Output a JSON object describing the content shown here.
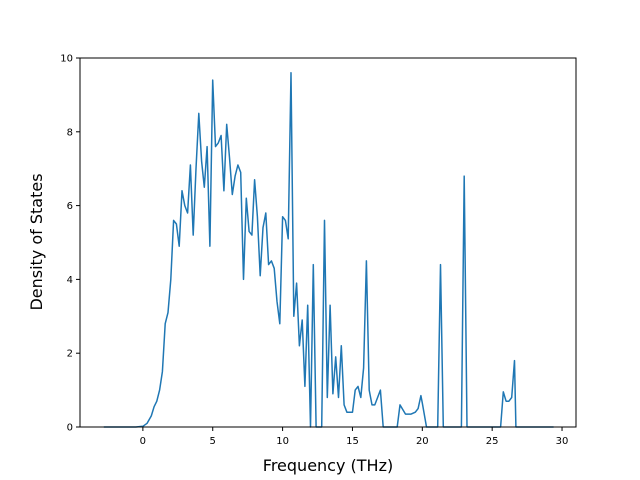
{
  "chart_data": {
    "type": "line",
    "title": "",
    "xlabel": "Frequency (THz)",
    "ylabel": "Density of States",
    "xlim": [
      -4.5,
      31
    ],
    "ylim": [
      0,
      10
    ],
    "xticks": [
      0,
      5,
      10,
      15,
      20,
      25,
      30
    ],
    "yticks": [
      0,
      2,
      4,
      6,
      8,
      10
    ],
    "grid": false,
    "legend": "none",
    "series": [
      {
        "color": "#1f77b4",
        "x": [
          -2.8,
          -1.5,
          -0.5,
          0.0,
          0.3,
          0.6,
          0.8,
          1.0,
          1.2,
          1.4,
          1.6,
          1.8,
          2.0,
          2.2,
          2.4,
          2.6,
          2.8,
          3.0,
          3.2,
          3.4,
          3.6,
          3.8,
          4.0,
          4.2,
          4.4,
          4.6,
          4.8,
          5.0,
          5.2,
          5.4,
          5.6,
          5.8,
          6.0,
          6.2,
          6.4,
          6.6,
          6.8,
          7.0,
          7.2,
          7.4,
          7.6,
          7.8,
          8.0,
          8.2,
          8.4,
          8.6,
          8.8,
          9.0,
          9.2,
          9.4,
          9.6,
          9.8,
          10.0,
          10.2,
          10.4,
          10.6,
          10.8,
          11.0,
          11.2,
          11.4,
          11.6,
          11.8,
          12.0,
          12.2,
          12.4,
          12.6,
          12.8,
          13.0,
          13.2,
          13.4,
          13.6,
          13.8,
          14.0,
          14.2,
          14.4,
          14.6,
          14.8,
          15.0,
          15.2,
          15.4,
          15.6,
          15.8,
          16.0,
          16.2,
          16.4,
          16.6,
          16.8,
          17.0,
          17.2,
          17.5,
          17.8,
          18.0,
          18.2,
          18.4,
          18.8,
          19.2,
          19.5,
          19.7,
          19.9,
          20.0,
          20.3,
          20.8,
          21.1,
          21.3,
          21.5,
          22.0,
          22.6,
          22.8,
          23.0,
          23.2,
          24.0,
          25.0,
          25.6,
          25.8,
          26.0,
          26.2,
          26.4,
          26.6,
          26.7,
          26.9,
          27.2,
          28.0,
          29.4
        ],
        "values": [
          0,
          0,
          0,
          0.02,
          0.1,
          0.3,
          0.55,
          0.7,
          1.0,
          1.5,
          2.8,
          3.1,
          4.0,
          5.6,
          5.5,
          4.9,
          6.4,
          6.0,
          5.8,
          7.1,
          5.2,
          7.0,
          8.5,
          7.2,
          6.5,
          7.6,
          4.9,
          9.4,
          7.6,
          7.7,
          7.9,
          6.4,
          8.2,
          7.3,
          6.3,
          6.8,
          7.1,
          6.9,
          4.0,
          6.2,
          5.3,
          5.2,
          6.7,
          5.7,
          4.1,
          5.4,
          5.8,
          4.4,
          4.5,
          4.3,
          3.4,
          2.8,
          5.7,
          5.6,
          5.1,
          9.6,
          3.0,
          3.9,
          2.2,
          2.9,
          1.1,
          3.3,
          0.0,
          4.4,
          0.0,
          0.0,
          0.0,
          5.6,
          0.8,
          3.3,
          0.9,
          1.9,
          0.8,
          2.2,
          0.6,
          0.4,
          0.4,
          0.4,
          1.0,
          1.1,
          0.8,
          1.6,
          4.5,
          1.0,
          0.6,
          0.6,
          0.8,
          1.0,
          0.0,
          0.0,
          0.0,
          0.0,
          0.0,
          0.6,
          0.35,
          0.35,
          0.4,
          0.5,
          0.85,
          0.65,
          0.0,
          0.0,
          0.0,
          4.4,
          0.0,
          0.0,
          0.0,
          0.0,
          6.8,
          0.0,
          0.0,
          0.0,
          0.0,
          0.95,
          0.7,
          0.7,
          0.8,
          1.8,
          0.0,
          0.0,
          0.0,
          0.0,
          0.0
        ]
      }
    ]
  }
}
